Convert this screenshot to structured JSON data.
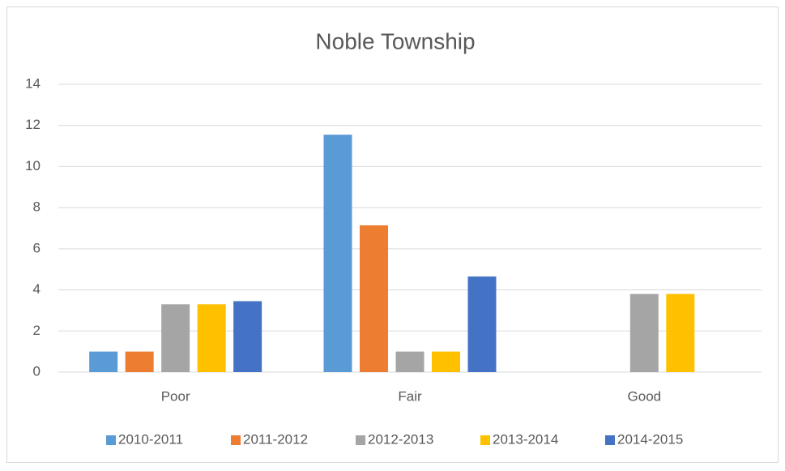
{
  "chart_data": {
    "type": "bar",
    "title": "Noble Township",
    "categories": [
      "Poor",
      "Fair",
      "Good"
    ],
    "series": [
      {
        "name": "2010-2011",
        "color": "#5b9bd5",
        "values": [
          1,
          11.55,
          0
        ]
      },
      {
        "name": "2011-2012",
        "color": "#ed7d31",
        "values": [
          1,
          7.14,
          0
        ]
      },
      {
        "name": "2012-2013",
        "color": "#a5a5a5",
        "values": [
          3.3,
          1,
          3.8
        ]
      },
      {
        "name": "2013-2014",
        "color": "#ffc000",
        "values": [
          3.3,
          1,
          3.8
        ]
      },
      {
        "name": "2014-2015",
        "color": "#4472c4",
        "values": [
          3.45,
          4.65,
          0
        ]
      }
    ],
    "ylim": [
      0,
      14
    ],
    "yticks": [
      0,
      2,
      4,
      6,
      8,
      10,
      12,
      14
    ],
    "grid": true,
    "legend": "bottom"
  }
}
